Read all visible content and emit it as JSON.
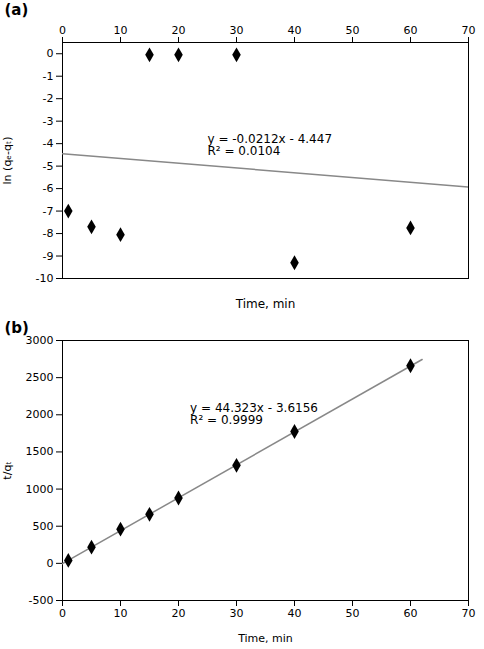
{
  "chart_data": [
    {
      "type": "scatter",
      "title": "(a)",
      "xlabel": "Time, min",
      "ylabel": "ln (qₑ-qₜ)",
      "series": [
        {
          "type": "line",
          "color": "#888888",
          "x": [
            0,
            70
          ],
          "values": [
            -4.447,
            -5.931
          ]
        },
        {
          "type": "scatter",
          "marker": "diamond",
          "color": "#000000",
          "x": [
            1,
            5,
            10,
            15,
            20,
            30,
            40,
            60
          ],
          "values": [
            -7.0,
            -7.7,
            -8.05,
            -0.05,
            -0.05,
            -0.05,
            -9.3,
            -7.75
          ]
        }
      ],
      "annotations": [
        {
          "x": 25,
          "y": -3.6,
          "text": "y = -0.0212x - 4.447\nR² = 0.0104"
        }
      ],
      "xlim": [
        0,
        70
      ],
      "ylim": [
        -10,
        0.5
      ],
      "xticks": [
        0,
        10,
        20,
        30,
        40,
        50,
        60,
        70
      ],
      "yticks": [
        0,
        -1,
        -2,
        -3,
        -4,
        -5,
        -6,
        -7,
        -8,
        -9,
        -10
      ],
      "grid": false
    },
    {
      "type": "scatter",
      "title": "(b)",
      "xlabel": "Time, min",
      "ylabel": "t/qₜ",
      "series": [
        {
          "type": "line",
          "color": "#888888",
          "x": [
            0,
            62
          ],
          "values": [
            -3.6156,
            2744.4104
          ]
        },
        {
          "type": "scatter",
          "marker": "diamond",
          "color": "#000000",
          "x": [
            1,
            5,
            10,
            15,
            20,
            30,
            40,
            60
          ],
          "values": [
            40,
            218,
            460,
            660,
            880,
            1320,
            1775,
            2660
          ]
        }
      ],
      "annotations": [
        {
          "x": 22,
          "y": 2150,
          "text": "y = 44.323x - 3.6156\nR² = 0.9999"
        }
      ],
      "xlim": [
        0,
        70
      ],
      "ylim": [
        -500,
        3000
      ],
      "xticks": [
        0,
        10,
        20,
        30,
        40,
        50,
        60,
        70
      ],
      "yticks": [
        -500,
        0,
        500,
        1000,
        1500,
        2000,
        2500,
        3000
      ],
      "grid": false
    }
  ]
}
